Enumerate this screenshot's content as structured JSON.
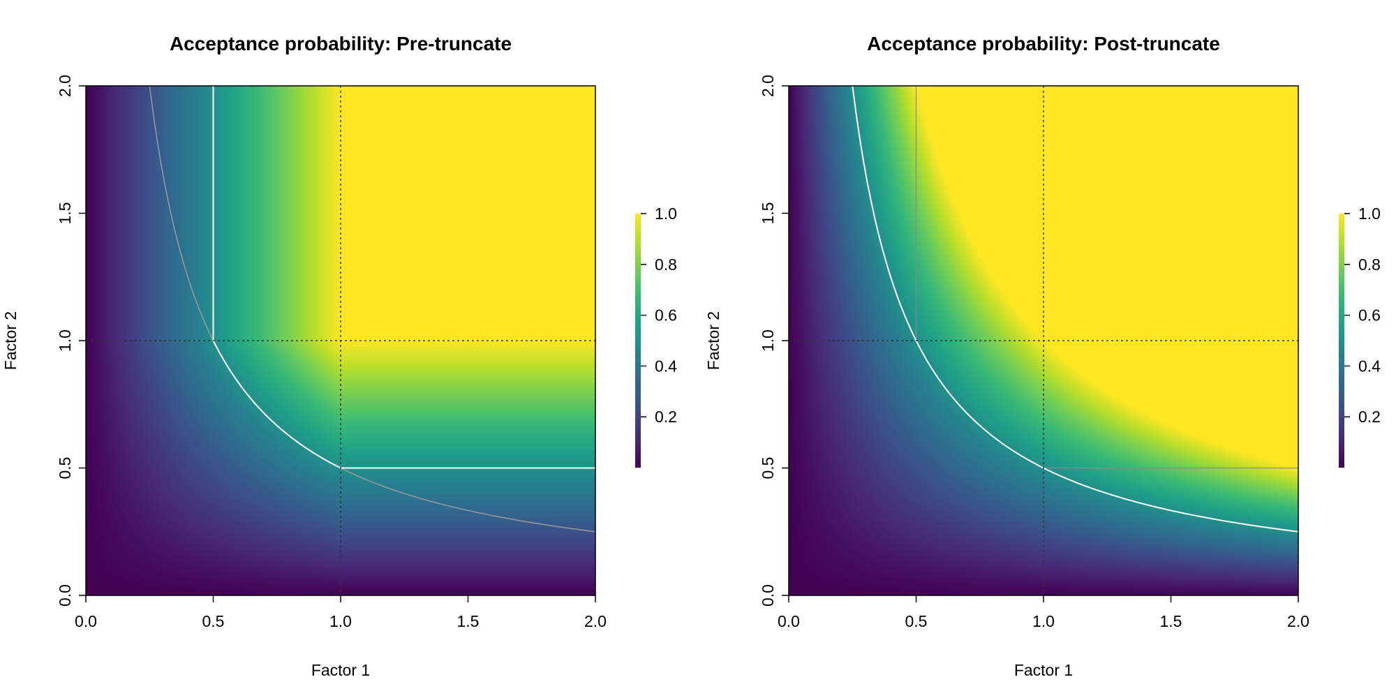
{
  "chart_data": [
    {
      "type": "heatmap",
      "title": "Acceptance probability: Pre-truncate",
      "xlabel": "Factor 1",
      "ylabel": "Factor 2",
      "xlim": [
        0,
        2
      ],
      "ylim": [
        0,
        2
      ],
      "xticks": [
        "0.0",
        "0.5",
        "1.0",
        "1.5",
        "2.0"
      ],
      "yticks": [
        "0.0",
        "0.5",
        "1.0",
        "1.5",
        "2.0"
      ],
      "colorbar": {
        "min": 0,
        "max": 1,
        "ticks": [
          "0.2",
          "0.4",
          "0.6",
          "0.8",
          "1.0"
        ],
        "palette": "viridis"
      },
      "reference_lines": {
        "x": 1.0,
        "y": 1.0,
        "style": "dotted"
      },
      "contours": [
        {
          "name": "product = 0.5",
          "color": "#9a9a9a",
          "x_range": [
            0.25,
            2.0
          ]
        },
        {
          "name": "truncated boundary",
          "color": "#ffffff"
        }
      ]
    },
    {
      "type": "heatmap",
      "title": "Acceptance probability: Post-truncate",
      "xlabel": "Factor 1",
      "ylabel": "Factor 2",
      "xlim": [
        0,
        2
      ],
      "ylim": [
        0,
        2
      ],
      "xticks": [
        "0.0",
        "0.5",
        "1.0",
        "1.5",
        "2.0"
      ],
      "yticks": [
        "0.0",
        "0.5",
        "1.0",
        "1.5",
        "2.0"
      ],
      "colorbar": {
        "min": 0,
        "max": 1,
        "ticks": [
          "0.2",
          "0.4",
          "0.6",
          "0.8",
          "1.0"
        ],
        "palette": "viridis"
      },
      "reference_lines": {
        "x": 1.0,
        "y": 1.0,
        "style": "dotted"
      },
      "contours": [
        {
          "name": "product = 0.5",
          "color": "#ffffff",
          "x_range": [
            0.25,
            2.0
          ]
        },
        {
          "name": "truncation lines",
          "color": "#8a8a8a"
        }
      ]
    }
  ]
}
